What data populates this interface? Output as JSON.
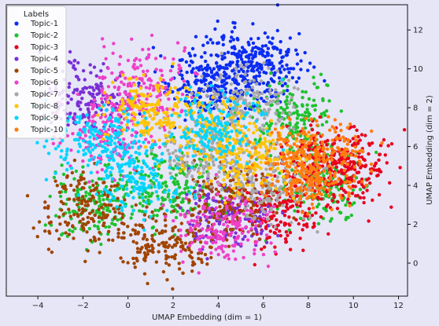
{
  "chart_data": {
    "type": "scatter",
    "title": "",
    "xlabel": "UMAP Embedding (dim = 1)",
    "ylabel": "UMAP Embedding (dim = 2)",
    "xlim": [
      -5.4,
      12.4
    ],
    "ylim": [
      -1.7,
      13.3
    ],
    "xticks": [
      -4,
      -2,
      0,
      2,
      4,
      6,
      8,
      10,
      12
    ],
    "yticks": [
      0,
      2,
      4,
      6,
      8,
      10,
      12
    ],
    "y_axis_position": "right",
    "grid": false,
    "legend": {
      "title": "Labels",
      "position": "top-left"
    },
    "series": [
      {
        "name": "Topic-1",
        "color": "#0b2cf2",
        "centers": [
          [
            4.9,
            9.9
          ],
          [
            5.9,
            10.4
          ],
          [
            3.2,
            9.1
          ]
        ]
      },
      {
        "name": "Topic-2",
        "color": "#1ec22e",
        "centers": [
          [
            7.4,
            7.4
          ],
          [
            2.1,
            4.1
          ],
          [
            8.6,
            3.9
          ],
          [
            -1.3,
            3.0
          ]
        ]
      },
      {
        "name": "Topic-3",
        "color": "#e8001c",
        "centers": [
          [
            6.6,
            2.6
          ],
          [
            8.6,
            4.9
          ],
          [
            9.9,
            5.0
          ]
        ]
      },
      {
        "name": "Topic-4",
        "color": "#7a2fd6",
        "centers": [
          [
            4.4,
            2.4
          ],
          [
            -1.8,
            8.6
          ]
        ]
      },
      {
        "name": "Topic-5",
        "color": "#a14400",
        "centers": [
          [
            1.6,
            1.0
          ],
          [
            -1.7,
            2.7
          ],
          [
            4.6,
            3.1
          ]
        ]
      },
      {
        "name": "Topic-6",
        "color": "#f040c8",
        "centers": [
          [
            0.7,
            9.2
          ],
          [
            -0.8,
            6.6
          ],
          [
            4.1,
            1.9
          ]
        ]
      },
      {
        "name": "Topic-7",
        "color": "#a8a8a8",
        "centers": [
          [
            3.1,
            6.0
          ],
          [
            5.3,
            8.4
          ],
          [
            6.3,
            4.1
          ]
        ]
      },
      {
        "name": "Topic-8",
        "color": "#ffc400",
        "centers": [
          [
            3.6,
            6.9
          ],
          [
            0.7,
            7.9
          ],
          [
            5.6,
            5.4
          ]
        ]
      },
      {
        "name": "Topic-9",
        "color": "#00d5ff",
        "centers": [
          [
            0.4,
            4.4
          ],
          [
            3.9,
            7.1
          ],
          [
            -1.4,
            6.4
          ]
        ]
      },
      {
        "name": "Topic-10",
        "color": "#ff7d0f",
        "centers": [
          [
            8.4,
            4.8
          ],
          [
            8.2,
            5.4
          ]
        ]
      }
    ]
  }
}
